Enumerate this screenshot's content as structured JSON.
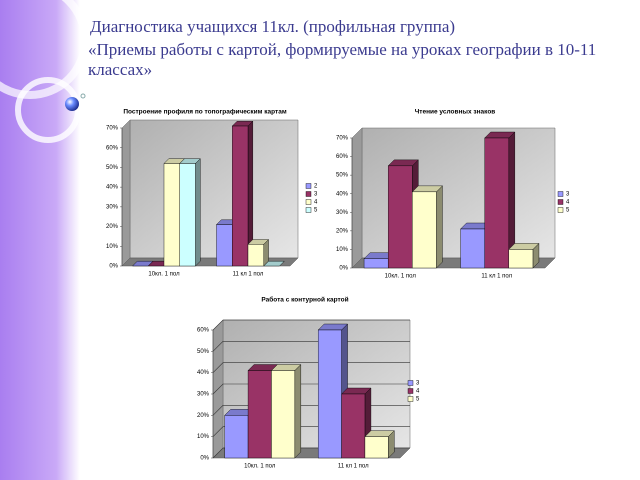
{
  "slide": {
    "title_line1": "Диагностика учащихся 11кл. (профильная группа)",
    "title_line2": "«Приемы работы с картой, формируемые на уроках географии в 10-11 классах»"
  },
  "chart_data": [
    {
      "type": "bar",
      "title": "Построение профиля по топографическим картам",
      "categories": [
        "10кл. 1 пол",
        "11 кл 1 пол"
      ],
      "series": [
        {
          "name": "2",
          "color": "#9999ff",
          "values": [
            0,
            21
          ]
        },
        {
          "name": "3",
          "color": "#993366",
          "values": [
            0,
            71
          ]
        },
        {
          "name": "4",
          "color": "#ffffcc",
          "values": [
            52,
            11
          ]
        },
        {
          "name": "5",
          "color": "#ccffff",
          "values": [
            52,
            0
          ]
        }
      ],
      "ylim": [
        0,
        70
      ],
      "yticks": [
        {
          "value": 0,
          "label": "0%"
        },
        {
          "value": 10,
          "label": "10%"
        },
        {
          "value": 20,
          "label": "20%"
        },
        {
          "value": 30,
          "label": "30%"
        },
        {
          "value": 40,
          "label": "40%"
        },
        {
          "value": 50,
          "label": "50%"
        },
        {
          "value": 60,
          "label": "60%"
        },
        {
          "value": 70,
          "label": "70%"
        }
      ],
      "grid": false
    },
    {
      "type": "bar",
      "title": "Чтение условных знаков",
      "categories": [
        "10кл. 1 пол",
        "11 кл 1 пол"
      ],
      "series": [
        {
          "name": "3",
          "color": "#9999ff",
          "values": [
            5,
            21
          ]
        },
        {
          "name": "4",
          "color": "#993366",
          "values": [
            55,
            70
          ]
        },
        {
          "name": "5",
          "color": "#ffffcc",
          "values": [
            41,
            10
          ]
        }
      ],
      "ylim": [
        0,
        70
      ],
      "yticks": [
        {
          "value": 0,
          "label": "0%"
        },
        {
          "value": 10,
          "label": "10%"
        },
        {
          "value": 20,
          "label": "20%"
        },
        {
          "value": 30,
          "label": "30%"
        },
        {
          "value": 40,
          "label": "40%"
        },
        {
          "value": 50,
          "label": "50%"
        },
        {
          "value": 60,
          "label": "60%"
        },
        {
          "value": 70,
          "label": "70%"
        }
      ],
      "grid": false
    },
    {
      "type": "bar",
      "title": "Работа с контурной картой",
      "categories": [
        "10кл. 1 пол",
        "11 кл 1 пол"
      ],
      "series": [
        {
          "name": "3",
          "color": "#9999ff",
          "values": [
            20,
            60
          ]
        },
        {
          "name": "4",
          "color": "#993366",
          "values": [
            41,
            30
          ]
        },
        {
          "name": "5",
          "color": "#ffffcc",
          "values": [
            41,
            10
          ]
        }
      ],
      "ylim": [
        0,
        60
      ],
      "yticks": [
        {
          "value": 0,
          "label": "0%"
        },
        {
          "value": 10,
          "label": "10%"
        },
        {
          "value": 20,
          "label": "20%"
        },
        {
          "value": 30,
          "label": "30%"
        },
        {
          "value": 40,
          "label": "40%"
        },
        {
          "value": 50,
          "label": "50%"
        },
        {
          "value": 60,
          "label": "60%"
        }
      ],
      "grid": true
    }
  ]
}
